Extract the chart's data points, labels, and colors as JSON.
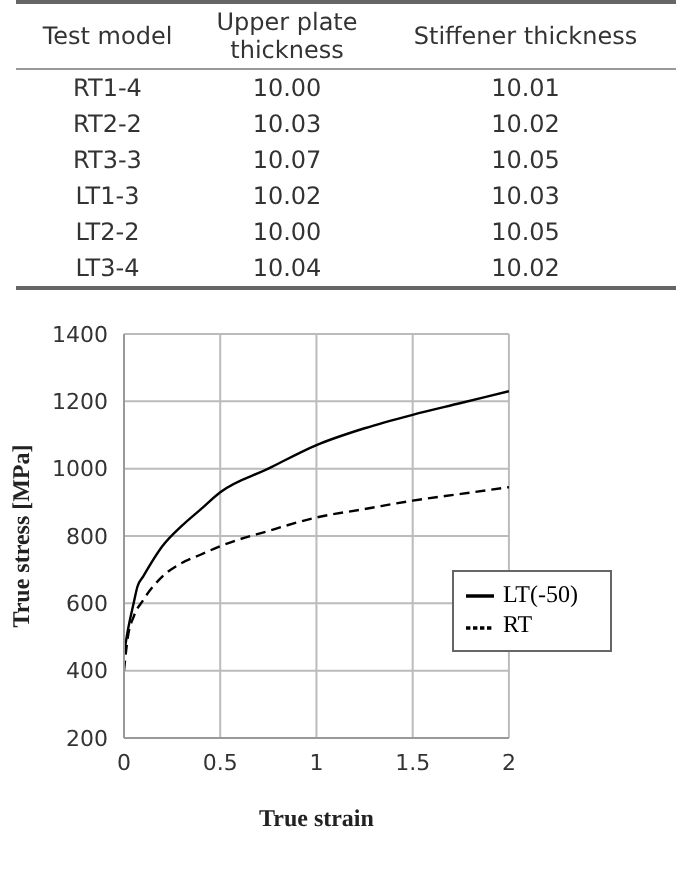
{
  "chart_data": [
    {
      "type": "other",
      "categories": [
        "Test model",
        "Upper plate thickness",
        "Stiffener thickness"
      ],
      "y_categories": [
        "RT1-4",
        "RT2-2",
        "RT3-3",
        "LT1-3",
        "LT2-2",
        "LT3-4"
      ],
      "cell_labels": [
        [
          "10.00",
          "10.01"
        ],
        [
          "10.03",
          "10.02"
        ],
        [
          "10.07",
          "10.05"
        ],
        [
          "10.02",
          "10.03"
        ],
        [
          "10.00",
          "10.05"
        ],
        [
          "10.04",
          "10.02"
        ]
      ]
    },
    {
      "type": "line",
      "xlabel": "True strain",
      "ylabel": "True stress [MPa]",
      "xlim": [
        0,
        2
      ],
      "xticks": [
        0,
        0.5,
        1,
        1.5,
        2
      ],
      "ylim": [
        200,
        1400
      ],
      "yticks": [
        200,
        400,
        600,
        800,
        1000,
        1200,
        1400
      ],
      "grid": true,
      "legend": "right",
      "marker": "none",
      "series": [
        {
          "name": "LT(-50)",
          "color": "#000000",
          "line_style": "solid",
          "x": [
            0,
            0.02,
            0.05,
            0.07,
            0.1,
            0.2,
            0.3,
            0.4,
            0.5,
            0.75,
            1,
            1.25,
            1.5,
            1.75,
            2
          ],
          "values": [
            450,
            520,
            600,
            650,
            680,
            770,
            830,
            880,
            930,
            1000,
            1070,
            1120,
            1160,
            1195,
            1230
          ]
        },
        {
          "name": "RT",
          "color": "#000000",
          "line_style": "dashed",
          "x": [
            0,
            0.02,
            0.05,
            0.1,
            0.2,
            0.3,
            0.4,
            0.5,
            0.75,
            1,
            1.25,
            1.5,
            1.75,
            2
          ],
          "values": [
            400,
            500,
            560,
            610,
            680,
            720,
            745,
            770,
            815,
            855,
            880,
            905,
            925,
            945
          ]
        }
      ]
    }
  ]
}
